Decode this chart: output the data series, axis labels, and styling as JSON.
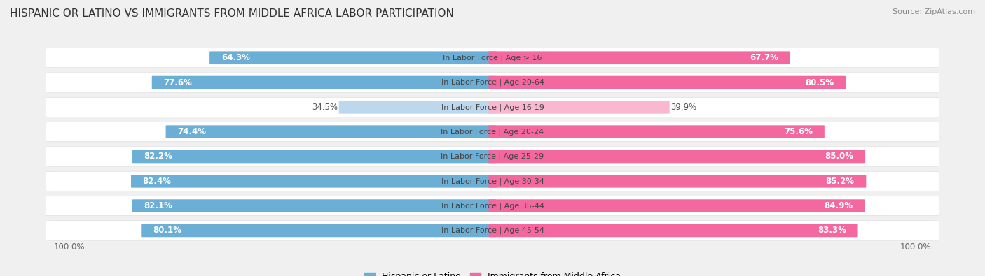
{
  "title": "HISPANIC OR LATINO VS IMMIGRANTS FROM MIDDLE AFRICA LABOR PARTICIPATION",
  "source": "Source: ZipAtlas.com",
  "categories": [
    "In Labor Force | Age > 16",
    "In Labor Force | Age 20-64",
    "In Labor Force | Age 16-19",
    "In Labor Force | Age 20-24",
    "In Labor Force | Age 25-29",
    "In Labor Force | Age 30-34",
    "In Labor Force | Age 35-44",
    "In Labor Force | Age 45-54"
  ],
  "hispanic_values": [
    64.3,
    77.6,
    34.5,
    74.4,
    82.2,
    82.4,
    82.1,
    80.1
  ],
  "immigrant_values": [
    67.7,
    80.5,
    39.9,
    75.6,
    85.0,
    85.2,
    84.9,
    83.3
  ],
  "hispanic_color": "#6baed6",
  "hispanic_color_light": "#bdd7ec",
  "immigrant_color": "#f468a0",
  "immigrant_color_light": "#f9b8d0",
  "bg_color": "#f0f0f0",
  "row_bg": "#ffffff",
  "legend_hispanic": "Hispanic or Latino",
  "legend_immigrant": "Immigrants from Middle Africa",
  "max_value": 100.0,
  "title_fontsize": 11,
  "source_fontsize": 8,
  "label_fontsize": 8.5,
  "cat_fontsize": 8,
  "legend_fontsize": 9,
  "light_row_index": 2
}
